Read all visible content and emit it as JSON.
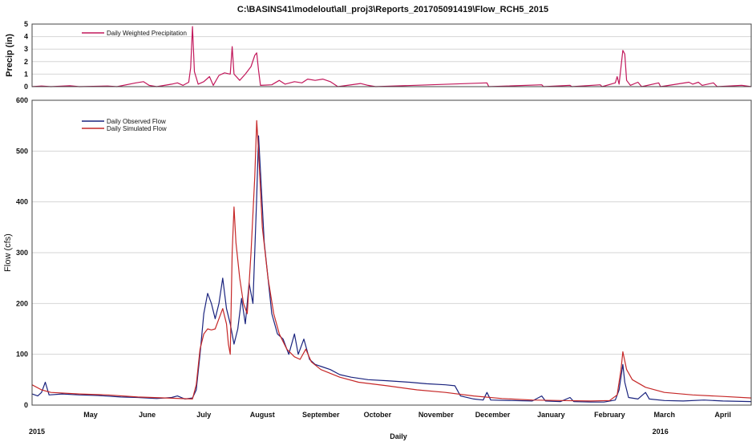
{
  "chart_data": [
    {
      "type": "line",
      "title": "C:\\BASINS41\\modelout\\all_proj3\\Reports_201705091419\\Flow_RCH5_2015",
      "ylabel": "Precip (in)",
      "ylim": [
        0,
        5
      ],
      "yticks": [
        0,
        1,
        2,
        3,
        4,
        5
      ],
      "grid": true,
      "legend_position": "top-left",
      "x_range": [
        "2015-04-15",
        "2016-04-30"
      ],
      "series": [
        {
          "name": "Daily Weighted Precipitation",
          "color": "#c2185b",
          "points": [
            [
              "2015-04-15",
              0
            ],
            [
              "2015-04-20",
              0.05
            ],
            [
              "2015-04-25",
              0
            ],
            [
              "2015-05-05",
              0.08
            ],
            [
              "2015-05-10",
              0
            ],
            [
              "2015-05-25",
              0.05
            ],
            [
              "2015-05-30",
              0
            ],
            [
              "2015-06-09",
              0.3
            ],
            [
              "2015-06-13",
              0.4
            ],
            [
              "2015-06-16",
              0.1
            ],
            [
              "2015-06-20",
              0
            ],
            [
              "2015-06-28",
              0.2
            ],
            [
              "2015-07-01",
              0.3
            ],
            [
              "2015-07-04",
              0.1
            ],
            [
              "2015-07-07",
              0.35
            ],
            [
              "2015-07-08",
              1.5
            ],
            [
              "2015-07-09",
              4.8
            ],
            [
              "2015-07-10",
              1.2
            ],
            [
              "2015-07-12",
              0.2
            ],
            [
              "2015-07-15",
              0.4
            ],
            [
              "2015-07-18",
              0.8
            ],
            [
              "2015-07-20",
              0.1
            ],
            [
              "2015-07-23",
              0.9
            ],
            [
              "2015-07-26",
              1.1
            ],
            [
              "2015-07-29",
              1.0
            ],
            [
              "2015-07-30",
              3.2
            ],
            [
              "2015-07-31",
              1.0
            ],
            [
              "2015-08-03",
              0.5
            ],
            [
              "2015-08-06",
              1.0
            ],
            [
              "2015-08-09",
              1.6
            ],
            [
              "2015-08-11",
              2.5
            ],
            [
              "2015-08-12",
              2.7
            ],
            [
              "2015-08-13",
              1.3
            ],
            [
              "2015-08-14",
              0.1
            ],
            [
              "2015-08-20",
              0.15
            ],
            [
              "2015-08-24",
              0.5
            ],
            [
              "2015-08-27",
              0.2
            ],
            [
              "2015-09-01",
              0.4
            ],
            [
              "2015-09-05",
              0.3
            ],
            [
              "2015-09-08",
              0.6
            ],
            [
              "2015-09-12",
              0.5
            ],
            [
              "2015-09-16",
              0.6
            ],
            [
              "2015-09-20",
              0.4
            ],
            [
              "2015-09-22",
              0.2
            ],
            [
              "2015-09-24",
              0
            ],
            [
              "2015-10-06",
              0.25
            ],
            [
              "2015-10-10",
              0.1
            ],
            [
              "2015-10-14",
              0
            ],
            [
              "2015-12-12",
              0.3
            ],
            [
              "2015-12-13",
              0
            ],
            [
              "2016-01-10",
              0.15
            ],
            [
              "2016-01-11",
              0
            ],
            [
              "2016-01-25",
              0.1
            ],
            [
              "2016-01-26",
              0
            ],
            [
              "2016-02-10",
              0.15
            ],
            [
              "2016-02-11",
              0
            ],
            [
              "2016-02-18",
              0.3
            ],
            [
              "2016-02-19",
              0.8
            ],
            [
              "2016-02-20",
              0.2
            ],
            [
              "2016-02-22",
              2.9
            ],
            [
              "2016-02-23",
              2.6
            ],
            [
              "2016-02-24",
              0.5
            ],
            [
              "2016-02-26",
              0.1
            ],
            [
              "2016-03-01",
              0.35
            ],
            [
              "2016-03-03",
              0
            ],
            [
              "2016-03-12",
              0.3
            ],
            [
              "2016-03-13",
              0
            ],
            [
              "2016-03-28",
              0.35
            ],
            [
              "2016-03-30",
              0.2
            ],
            [
              "2016-04-02",
              0.35
            ],
            [
              "2016-04-04",
              0.1
            ],
            [
              "2016-04-10",
              0.3
            ],
            [
              "2016-04-12",
              0
            ],
            [
              "2016-04-25",
              0.1
            ],
            [
              "2016-04-30",
              0
            ]
          ]
        }
      ]
    },
    {
      "type": "line",
      "title": "",
      "xlabel": "Daily",
      "ylabel": "Flow (cfs)",
      "ylim": [
        0,
        600
      ],
      "yticks": [
        0,
        100,
        200,
        300,
        400,
        500,
        600
      ],
      "grid": true,
      "legend_position": "top-left",
      "x_range": [
        "2015-04-15",
        "2016-04-30"
      ],
      "month_labels": [
        {
          "label": "May",
          "date": "2015-05-16"
        },
        {
          "label": "June",
          "date": "2015-06-15"
        },
        {
          "label": "July",
          "date": "2015-07-15"
        },
        {
          "label": "August",
          "date": "2015-08-15"
        },
        {
          "label": "September",
          "date": "2015-09-15"
        },
        {
          "label": "October",
          "date": "2015-10-15"
        },
        {
          "label": "November",
          "date": "2015-11-15"
        },
        {
          "label": "December",
          "date": "2015-12-15"
        },
        {
          "label": "January",
          "date": "2016-01-15"
        },
        {
          "label": "February",
          "date": "2016-02-15"
        },
        {
          "label": "March",
          "date": "2016-03-15"
        },
        {
          "label": "April",
          "date": "2016-04-15"
        }
      ],
      "year_labels": [
        {
          "label": "2015",
          "date": "2015-04-15"
        },
        {
          "label": "2016",
          "date": "2016-03-15"
        }
      ],
      "series": [
        {
          "name": "Daily Observed Flow",
          "color": "#1a237e",
          "points": [
            [
              "2015-04-15",
              22
            ],
            [
              "2015-04-18",
              18
            ],
            [
              "2015-04-20",
              25
            ],
            [
              "2015-04-22",
              45
            ],
            [
              "2015-04-24",
              20
            ],
            [
              "2015-05-01",
              22
            ],
            [
              "2015-05-10",
              20
            ],
            [
              "2015-05-20",
              19
            ],
            [
              "2015-06-01",
              16
            ],
            [
              "2015-06-10",
              15
            ],
            [
              "2015-06-20",
              13
            ],
            [
              "2015-06-28",
              15
            ],
            [
              "2015-07-01",
              18
            ],
            [
              "2015-07-05",
              12
            ],
            [
              "2015-07-09",
              14
            ],
            [
              "2015-07-11",
              30
            ],
            [
              "2015-07-13",
              100
            ],
            [
              "2015-07-15",
              180
            ],
            [
              "2015-07-17",
              220
            ],
            [
              "2015-07-19",
              200
            ],
            [
              "2015-07-21",
              170
            ],
            [
              "2015-07-23",
              200
            ],
            [
              "2015-07-25",
              250
            ],
            [
              "2015-07-27",
              190
            ],
            [
              "2015-07-29",
              160
            ],
            [
              "2015-07-31",
              120
            ],
            [
              "2015-08-02",
              150
            ],
            [
              "2015-08-04",
              210
            ],
            [
              "2015-08-06",
              160
            ],
            [
              "2015-08-08",
              240
            ],
            [
              "2015-08-10",
              200
            ],
            [
              "2015-08-12",
              410
            ],
            [
              "2015-08-13",
              530
            ],
            [
              "2015-08-14",
              460
            ],
            [
              "2015-08-16",
              320
            ],
            [
              "2015-08-18",
              250
            ],
            [
              "2015-08-20",
              180
            ],
            [
              "2015-08-23",
              140
            ],
            [
              "2015-08-26",
              130
            ],
            [
              "2015-08-29",
              100
            ],
            [
              "2015-09-01",
              140
            ],
            [
              "2015-09-03",
              100
            ],
            [
              "2015-09-06",
              130
            ],
            [
              "2015-09-09",
              90
            ],
            [
              "2015-09-12",
              80
            ],
            [
              "2015-09-16",
              75
            ],
            [
              "2015-09-20",
              70
            ],
            [
              "2015-09-25",
              60
            ],
            [
              "2015-10-01",
              55
            ],
            [
              "2015-10-10",
              50
            ],
            [
              "2015-10-20",
              48
            ],
            [
              "2015-11-01",
              45
            ],
            [
              "2015-11-10",
              42
            ],
            [
              "2015-11-20",
              40
            ],
            [
              "2015-11-25",
              38
            ],
            [
              "2015-11-28",
              18
            ],
            [
              "2015-12-05",
              12
            ],
            [
              "2015-12-10",
              10
            ],
            [
              "2015-12-12",
              25
            ],
            [
              "2015-12-14",
              10
            ],
            [
              "2015-12-25",
              9
            ],
            [
              "2016-01-05",
              8
            ],
            [
              "2016-01-10",
              18
            ],
            [
              "2016-01-12",
              8
            ],
            [
              "2016-01-20",
              7
            ],
            [
              "2016-01-25",
              15
            ],
            [
              "2016-01-27",
              7
            ],
            [
              "2016-02-05",
              6
            ],
            [
              "2016-02-12",
              6
            ],
            [
              "2016-02-18",
              10
            ],
            [
              "2016-02-20",
              30
            ],
            [
              "2016-02-22",
              80
            ],
            [
              "2016-02-23",
              45
            ],
            [
              "2016-02-25",
              15
            ],
            [
              "2016-03-01",
              12
            ],
            [
              "2016-03-05",
              25
            ],
            [
              "2016-03-07",
              12
            ],
            [
              "2016-03-15",
              9
            ],
            [
              "2016-03-25",
              8
            ],
            [
              "2016-04-05",
              10
            ],
            [
              "2016-04-15",
              8
            ],
            [
              "2016-04-30",
              7
            ]
          ]
        },
        {
          "name": "Daily Simulated Flow",
          "color": "#c62828",
          "points": [
            [
              "2015-04-15",
              40
            ],
            [
              "2015-04-20",
              30
            ],
            [
              "2015-04-25",
              25
            ],
            [
              "2015-05-10",
              22
            ],
            [
              "2015-05-25",
              20
            ],
            [
              "2015-06-10",
              16
            ],
            [
              "2015-06-25",
              14
            ],
            [
              "2015-07-09",
              12
            ],
            [
              "2015-07-11",
              40
            ],
            [
              "2015-07-13",
              110
            ],
            [
              "2015-07-15",
              140
            ],
            [
              "2015-07-17",
              150
            ],
            [
              "2015-07-19",
              148
            ],
            [
              "2015-07-21",
              150
            ],
            [
              "2015-07-23",
              170
            ],
            [
              "2015-07-25",
              190
            ],
            [
              "2015-07-27",
              160
            ],
            [
              "2015-07-28",
              120
            ],
            [
              "2015-07-29",
              100
            ],
            [
              "2015-07-30",
              300
            ],
            [
              "2015-07-31",
              390
            ],
            [
              "2015-08-01",
              320
            ],
            [
              "2015-08-03",
              250
            ],
            [
              "2015-08-05",
              200
            ],
            [
              "2015-08-07",
              180
            ],
            [
              "2015-08-09",
              300
            ],
            [
              "2015-08-11",
              450
            ],
            [
              "2015-08-12",
              560
            ],
            [
              "2015-08-13",
              500
            ],
            [
              "2015-08-15",
              350
            ],
            [
              "2015-08-18",
              250
            ],
            [
              "2015-08-21",
              180
            ],
            [
              "2015-08-24",
              140
            ],
            [
              "2015-08-28",
              110
            ],
            [
              "2015-09-01",
              95
            ],
            [
              "2015-09-04",
              90
            ],
            [
              "2015-09-07",
              110
            ],
            [
              "2015-09-10",
              85
            ],
            [
              "2015-09-15",
              70
            ],
            [
              "2015-09-25",
              55
            ],
            [
              "2015-10-05",
              45
            ],
            [
              "2015-10-20",
              38
            ],
            [
              "2015-11-05",
              30
            ],
            [
              "2015-11-20",
              25
            ],
            [
              "2015-12-05",
              18
            ],
            [
              "2015-12-20",
              13
            ],
            [
              "2016-01-05",
              10
            ],
            [
              "2016-01-20",
              9
            ],
            [
              "2016-02-05",
              8
            ],
            [
              "2016-02-15",
              9
            ],
            [
              "2016-02-19",
              20
            ],
            [
              "2016-02-21",
              70
            ],
            [
              "2016-02-22",
              105
            ],
            [
              "2016-02-24",
              70
            ],
            [
              "2016-02-27",
              50
            ],
            [
              "2016-03-05",
              35
            ],
            [
              "2016-03-15",
              25
            ],
            [
              "2016-03-30",
              20
            ],
            [
              "2016-04-15",
              17
            ],
            [
              "2016-04-30",
              14
            ]
          ]
        }
      ]
    }
  ]
}
